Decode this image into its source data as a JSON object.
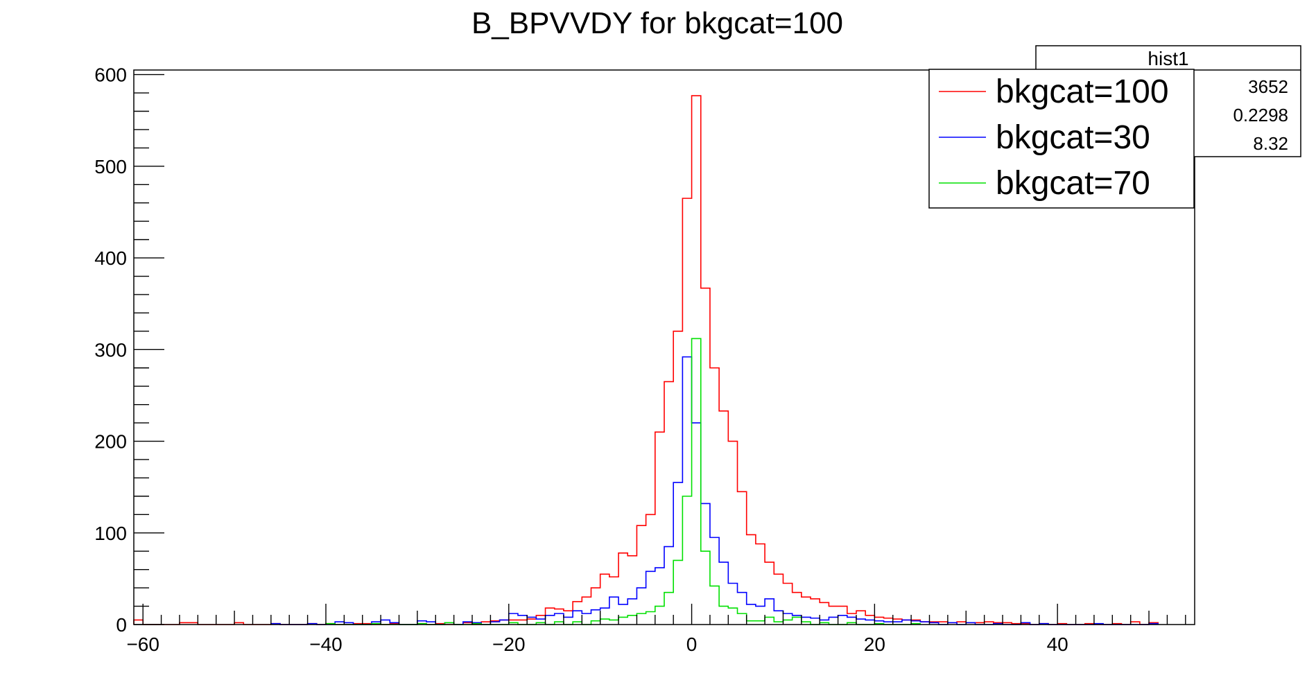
{
  "chart_data": {
    "type": "histogram",
    "title": "B_BPVVDY for bkgcat=100",
    "xlabel": "",
    "ylabel": "",
    "xlim": [
      -61,
      55
    ],
    "ylim": [
      0,
      605
    ],
    "x_ticks": [
      -60,
      -40,
      -20,
      0,
      20,
      40
    ],
    "x_tick_labels": [
      "−60",
      "−40",
      "−20",
      "0",
      "20",
      "40"
    ],
    "y_ticks": [
      0,
      100,
      200,
      300,
      400,
      500,
      600
    ],
    "y_tick_labels": [
      "0",
      "100",
      "200",
      "300",
      "400",
      "500",
      "600"
    ],
    "grid": false,
    "legend_position": "top-right",
    "stats_box": {
      "title": "hist1",
      "values": [
        "3652",
        "0.2298",
        "8.32"
      ]
    },
    "series": [
      {
        "name": "bkgcat=100",
        "color": "#ff0000",
        "bins": [
          [
            -61,
            -60,
            5
          ],
          [
            -60,
            -59,
            0
          ],
          [
            -56,
            -54,
            2
          ],
          [
            -50,
            -49,
            2
          ],
          [
            -46,
            -45,
            1
          ],
          [
            -42,
            -41,
            1
          ],
          [
            -40,
            -39,
            1
          ],
          [
            -37,
            -35,
            1
          ],
          [
            -33,
            -32,
            1
          ],
          [
            -30,
            -29,
            1
          ],
          [
            -28,
            -27,
            1
          ],
          [
            -25,
            -24,
            2
          ],
          [
            -23,
            -22,
            3
          ],
          [
            -22,
            -21,
            4
          ],
          [
            -21,
            -20,
            5
          ],
          [
            -20,
            -19,
            5
          ],
          [
            -19,
            -18,
            5
          ],
          [
            -18,
            -17,
            6
          ],
          [
            -17,
            -16,
            10
          ],
          [
            -16,
            -15,
            18
          ],
          [
            -15,
            -14,
            17
          ],
          [
            -14,
            -13,
            15
          ],
          [
            -13,
            -12,
            25
          ],
          [
            -12,
            -11,
            30
          ],
          [
            -11,
            -10,
            40
          ],
          [
            -10,
            -9,
            55
          ],
          [
            -9,
            -8,
            52
          ],
          [
            -8,
            -7,
            78
          ],
          [
            -7,
            -6,
            75
          ],
          [
            -6,
            -5,
            108
          ],
          [
            -5,
            -4,
            120
          ],
          [
            -4,
            -3,
            210
          ],
          [
            -3,
            -2,
            265
          ],
          [
            -2,
            -1,
            320
          ],
          [
            -1,
            0,
            465
          ],
          [
            0,
            1,
            577
          ],
          [
            1,
            2,
            367
          ],
          [
            2,
            3,
            280
          ],
          [
            3,
            4,
            233
          ],
          [
            4,
            5,
            200
          ],
          [
            5,
            6,
            145
          ],
          [
            6,
            7,
            98
          ],
          [
            7,
            8,
            88
          ],
          [
            8,
            9,
            68
          ],
          [
            9,
            10,
            55
          ],
          [
            10,
            11,
            45
          ],
          [
            11,
            12,
            35
          ],
          [
            12,
            13,
            30
          ],
          [
            13,
            14,
            28
          ],
          [
            14,
            15,
            24
          ],
          [
            15,
            16,
            20
          ],
          [
            16,
            17,
            20
          ],
          [
            17,
            18,
            12
          ],
          [
            18,
            19,
            15
          ],
          [
            19,
            20,
            10
          ],
          [
            20,
            21,
            8
          ],
          [
            21,
            22,
            7
          ],
          [
            22,
            23,
            6
          ],
          [
            23,
            24,
            5
          ],
          [
            24,
            25,
            5
          ],
          [
            25,
            26,
            3
          ],
          [
            26,
            27,
            3
          ],
          [
            27,
            28,
            3
          ],
          [
            28,
            29,
            2
          ],
          [
            29,
            30,
            3
          ],
          [
            30,
            31,
            2
          ],
          [
            31,
            32,
            2
          ],
          [
            32,
            33,
            3
          ],
          [
            33,
            34,
            2
          ],
          [
            34,
            35,
            2
          ],
          [
            35,
            36,
            1
          ],
          [
            36,
            37,
            1
          ],
          [
            38,
            39,
            1
          ],
          [
            40,
            41,
            1
          ],
          [
            43,
            44,
            1
          ],
          [
            46,
            47,
            1
          ],
          [
            48,
            49,
            3
          ],
          [
            50,
            51,
            2
          ]
        ]
      },
      {
        "name": "bkgcat=30",
        "color": "#0000ff",
        "bins": [
          [
            -46,
            -45,
            1
          ],
          [
            -42,
            -41,
            1
          ],
          [
            -39,
            -38,
            3
          ],
          [
            -38,
            -37,
            2
          ],
          [
            -35,
            -34,
            3
          ],
          [
            -34,
            -33,
            5
          ],
          [
            -33,
            -32,
            2
          ],
          [
            -30,
            -29,
            4
          ],
          [
            -29,
            -28,
            3
          ],
          [
            -27,
            -26,
            2
          ],
          [
            -25,
            -24,
            3
          ],
          [
            -24,
            -23,
            2
          ],
          [
            -22,
            -21,
            3
          ],
          [
            -21,
            -20,
            5
          ],
          [
            -20,
            -19,
            12
          ],
          [
            -19,
            -18,
            10
          ],
          [
            -18,
            -17,
            8
          ],
          [
            -17,
            -16,
            6
          ],
          [
            -16,
            -15,
            10
          ],
          [
            -15,
            -14,
            12
          ],
          [
            -14,
            -13,
            8
          ],
          [
            -13,
            -12,
            15
          ],
          [
            -12,
            -11,
            12
          ],
          [
            -11,
            -10,
            16
          ],
          [
            -10,
            -9,
            18
          ],
          [
            -9,
            -8,
            30
          ],
          [
            -8,
            -7,
            22
          ],
          [
            -7,
            -6,
            28
          ],
          [
            -6,
            -5,
            40
          ],
          [
            -5,
            -4,
            58
          ],
          [
            -4,
            -3,
            62
          ],
          [
            -3,
            -2,
            85
          ],
          [
            -2,
            -1,
            155
          ],
          [
            -1,
            0,
            292
          ],
          [
            0,
            1,
            220
          ],
          [
            1,
            2,
            132
          ],
          [
            2,
            3,
            95
          ],
          [
            3,
            4,
            68
          ],
          [
            4,
            5,
            45
          ],
          [
            5,
            6,
            35
          ],
          [
            6,
            7,
            22
          ],
          [
            7,
            8,
            20
          ],
          [
            8,
            9,
            28
          ],
          [
            9,
            10,
            15
          ],
          [
            10,
            11,
            12
          ],
          [
            11,
            12,
            10
          ],
          [
            12,
            13,
            8
          ],
          [
            13,
            14,
            7
          ],
          [
            14,
            15,
            5
          ],
          [
            15,
            16,
            8
          ],
          [
            16,
            17,
            10
          ],
          [
            17,
            18,
            8
          ],
          [
            18,
            19,
            6
          ],
          [
            19,
            20,
            5
          ],
          [
            20,
            21,
            4
          ],
          [
            21,
            22,
            3
          ],
          [
            22,
            23,
            3
          ],
          [
            23,
            24,
            5
          ],
          [
            24,
            25,
            4
          ],
          [
            25,
            26,
            3
          ],
          [
            26,
            27,
            2
          ],
          [
            28,
            29,
            2
          ],
          [
            30,
            31,
            2
          ],
          [
            33,
            34,
            1
          ],
          [
            36,
            37,
            2
          ],
          [
            38,
            39,
            1
          ],
          [
            44,
            45,
            1
          ],
          [
            50,
            51,
            1
          ]
        ]
      },
      {
        "name": "bkgcat=70",
        "color": "#00e000",
        "bins": [
          [
            -40,
            -39,
            1
          ],
          [
            -35,
            -34,
            1
          ],
          [
            -30,
            -29,
            1
          ],
          [
            -27,
            -26,
            2
          ],
          [
            -24,
            -23,
            1
          ],
          [
            -20,
            -19,
            2
          ],
          [
            -17,
            -16,
            2
          ],
          [
            -15,
            -14,
            3
          ],
          [
            -13,
            -12,
            3
          ],
          [
            -11,
            -10,
            4
          ],
          [
            -10,
            -9,
            6
          ],
          [
            -9,
            -8,
            5
          ],
          [
            -8,
            -7,
            8
          ],
          [
            -7,
            -6,
            10
          ],
          [
            -6,
            -5,
            12
          ],
          [
            -5,
            -4,
            14
          ],
          [
            -4,
            -3,
            20
          ],
          [
            -3,
            -2,
            35
          ],
          [
            -2,
            -1,
            70
          ],
          [
            -1,
            0,
            140
          ],
          [
            0,
            1,
            312
          ],
          [
            1,
            2,
            80
          ],
          [
            2,
            3,
            42
          ],
          [
            3,
            4,
            20
          ],
          [
            4,
            5,
            18
          ],
          [
            5,
            6,
            12
          ],
          [
            6,
            7,
            4
          ],
          [
            7,
            8,
            4
          ],
          [
            8,
            9,
            8
          ],
          [
            9,
            10,
            3
          ],
          [
            10,
            11,
            5
          ],
          [
            11,
            12,
            8
          ],
          [
            12,
            13,
            3
          ],
          [
            14,
            15,
            2
          ],
          [
            17,
            18,
            2
          ],
          [
            20,
            21,
            1
          ],
          [
            24,
            25,
            1
          ]
        ]
      }
    ]
  }
}
